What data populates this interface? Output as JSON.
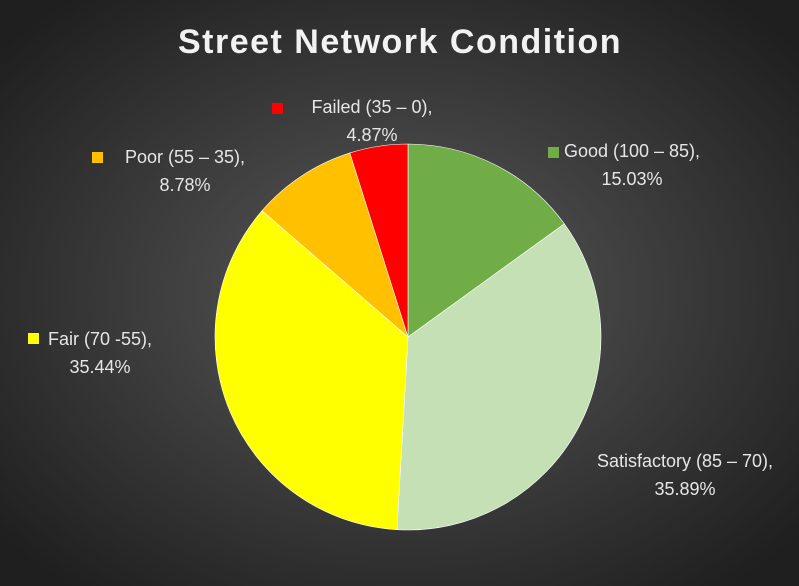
{
  "chart_data": {
    "type": "pie",
    "title": "Street Network Condition",
    "categories": [
      "Good (100 – 85),",
      "Satisfactory (85 – 70),",
      "Fair (70 -55),",
      "Poor (55 – 35),",
      "Failed (35 – 0),"
    ],
    "values": [
      15.03,
      35.89,
      35.44,
      8.78,
      4.87
    ],
    "value_labels": [
      "15.03%",
      "35.89%",
      "35.44%",
      "8.78%",
      "4.87%"
    ],
    "colors": [
      "#70ad47",
      "#c5e0b4",
      "#ffff00",
      "#ffc000",
      "#ff0000"
    ]
  }
}
